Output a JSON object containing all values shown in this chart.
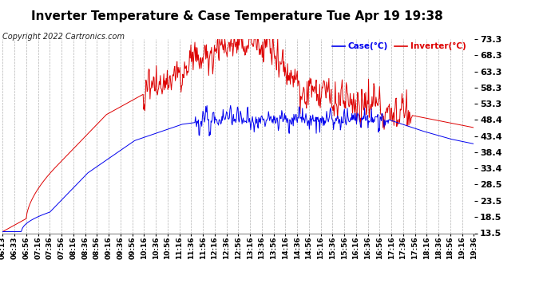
{
  "title": "Inverter Temperature & Case Temperature Tue Apr 19 19:38",
  "copyright": "Copyright 2022 Cartronics.com",
  "ylabel_right_ticks": [
    13.5,
    18.5,
    23.5,
    28.5,
    33.4,
    38.4,
    43.4,
    48.4,
    53.3,
    58.3,
    63.3,
    68.3,
    73.3
  ],
  "ymin": 13.5,
  "ymax": 73.3,
  "legend_case_label": "Case(°C)",
  "legend_inverter_label": "Inverter(°C)",
  "case_color": "#0000ee",
  "inverter_color": "#dd0000",
  "background_color": "#ffffff",
  "plot_bg_color": "#ffffff",
  "grid_color": "#aaaaaa",
  "title_fontsize": 11,
  "tick_label_fontsize": 8,
  "copyright_fontsize": 7,
  "x_tick_labels": [
    "06:13",
    "06:33",
    "06:56",
    "07:16",
    "07:36",
    "07:56",
    "08:16",
    "08:36",
    "08:56",
    "09:16",
    "09:36",
    "09:56",
    "10:16",
    "10:36",
    "10:56",
    "11:16",
    "11:36",
    "11:56",
    "12:16",
    "12:36",
    "12:56",
    "13:16",
    "13:36",
    "13:56",
    "14:16",
    "14:36",
    "14:56",
    "15:16",
    "15:36",
    "15:56",
    "16:16",
    "16:36",
    "16:56",
    "17:16",
    "17:36",
    "17:56",
    "18:16",
    "18:36",
    "18:56",
    "19:16",
    "19:36"
  ]
}
